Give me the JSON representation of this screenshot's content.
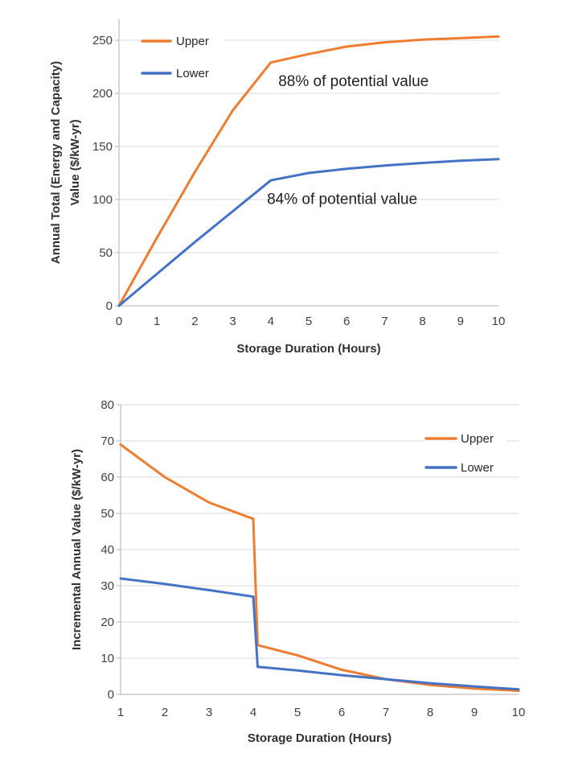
{
  "page": {
    "background": "#ffffff"
  },
  "colors": {
    "upper": "#ED7D31",
    "lower": "#4472C4",
    "grid": "#D9D9D9",
    "axis": "#BFBFBF"
  },
  "chart_data": [
    {
      "type": "line",
      "title": "",
      "xlabel": "Storage Duration (Hours)",
      "ylabel_lines": [
        "Annual Total (Energy and Capacity)",
        "Value ($/kW-yr)"
      ],
      "xlim": [
        0,
        10
      ],
      "ylim": [
        0,
        250
      ],
      "xticks": [
        0,
        1,
        2,
        3,
        4,
        5,
        6,
        7,
        8,
        9,
        10
      ],
      "yticks": [
        0,
        50,
        100,
        150,
        200,
        250
      ],
      "grid": "horizontal",
      "legend_position": "top-left-inside",
      "series": [
        {
          "name": "Upper",
          "color": "#ED7D31",
          "x": [
            0,
            1,
            2,
            3,
            4,
            5,
            6,
            7,
            8,
            9,
            10
          ],
          "y": [
            0,
            64,
            126,
            184,
            229,
            237,
            244,
            248,
            250.5,
            252,
            253.5
          ]
        },
        {
          "name": "Lower",
          "color": "#4472C4",
          "x": [
            0,
            1,
            2,
            3,
            4,
            5,
            6,
            7,
            8,
            9,
            10
          ],
          "y": [
            0,
            30,
            60,
            89,
            118,
            125,
            129,
            132,
            134.5,
            136.5,
            138
          ]
        }
      ],
      "annotations": [
        {
          "text": "88% of potential value",
          "x": 4.2,
          "y": 207
        },
        {
          "text": "84% of potential value",
          "x": 3.9,
          "y": 96
        }
      ]
    },
    {
      "type": "line",
      "title": "",
      "xlabel": "Storage Duration (Hours)",
      "ylabel_lines": [
        "Incremental Annual Value ($/kW-yr)"
      ],
      "xlim": [
        1,
        10
      ],
      "ylim": [
        0,
        80
      ],
      "xticks": [
        1,
        2,
        3,
        4,
        5,
        6,
        7,
        8,
        9,
        10
      ],
      "yticks": [
        0,
        10,
        20,
        30,
        40,
        50,
        60,
        70,
        80
      ],
      "grid": "horizontal",
      "legend_position": "top-right-inside",
      "series": [
        {
          "name": "Upper",
          "color": "#ED7D31",
          "x": [
            1,
            2,
            3,
            4,
            4.1,
            5,
            6,
            7,
            8,
            9,
            10
          ],
          "y": [
            69,
            60,
            53,
            48.5,
            13.6,
            10.8,
            6.8,
            4.2,
            2.6,
            1.6,
            1.0
          ]
        },
        {
          "name": "Lower",
          "color": "#4472C4",
          "x": [
            1,
            2,
            3,
            4,
            4.1,
            5,
            6,
            7,
            8,
            9,
            10
          ],
          "y": [
            32,
            30.5,
            28.8,
            27,
            7.6,
            6.6,
            5.3,
            4.2,
            3.1,
            2.2,
            1.4
          ]
        }
      ],
      "annotations": []
    }
  ]
}
